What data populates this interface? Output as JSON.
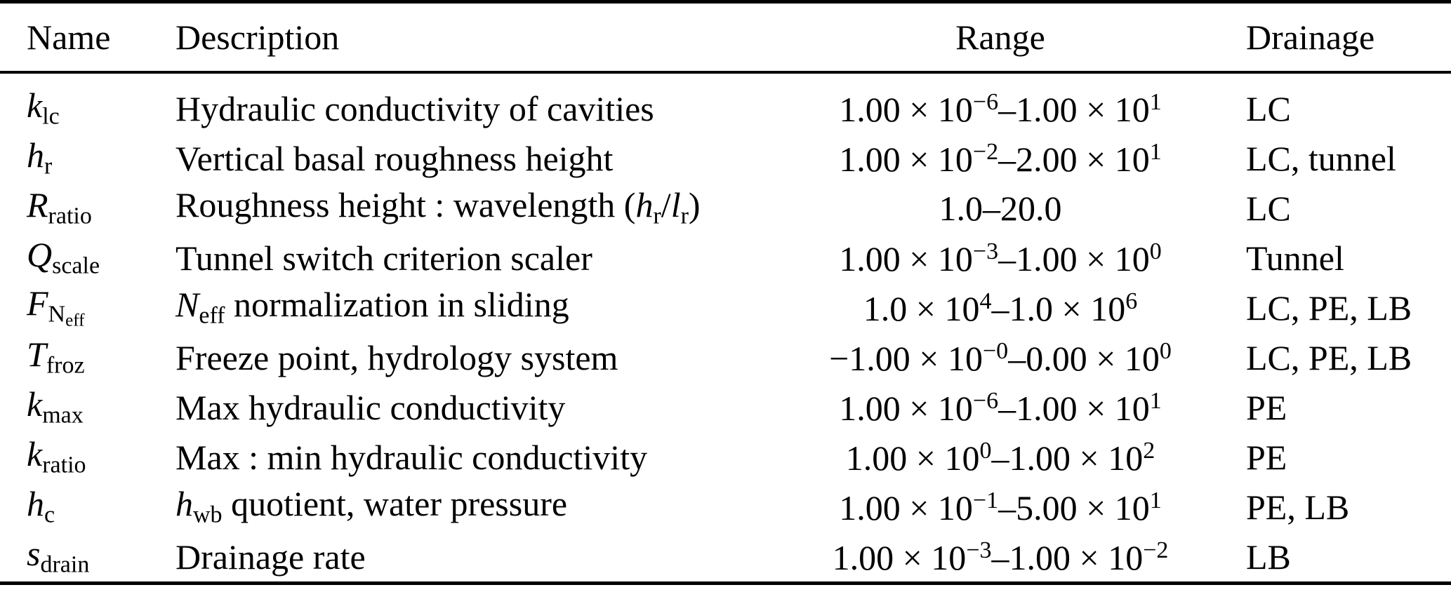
{
  "table": {
    "headers": [
      {
        "label": "Name"
      },
      {
        "label": "Description"
      },
      {
        "label": "Range"
      },
      {
        "label": "Drainage"
      }
    ],
    "rows": [
      {
        "name": [
          {
            "t": "k",
            "i": true
          },
          {
            "t": "lc",
            "v": "sub"
          }
        ],
        "description": [
          {
            "t": "Hydraulic conductivity of cavities"
          }
        ],
        "range": [
          {
            "t": "1.00 × 10"
          },
          {
            "t": "−6",
            "v": "sup"
          },
          {
            "t": "–1.00 × 10"
          },
          {
            "t": "1",
            "v": "sup"
          }
        ],
        "drainage": "LC"
      },
      {
        "name": [
          {
            "t": "h",
            "i": true
          },
          {
            "t": "r",
            "v": "sub"
          }
        ],
        "description": [
          {
            "t": "Vertical basal roughness height"
          }
        ],
        "range": [
          {
            "t": "1.00 × 10"
          },
          {
            "t": "−2",
            "v": "sup"
          },
          {
            "t": "–2.00 × 10"
          },
          {
            "t": "1",
            "v": "sup"
          }
        ],
        "drainage": "LC, tunnel"
      },
      {
        "name": [
          {
            "t": "R",
            "i": true
          },
          {
            "t": "ratio",
            "v": "sub"
          }
        ],
        "description": [
          {
            "t": "Roughness height : wavelength ("
          },
          {
            "t": "h",
            "i": true
          },
          {
            "t": "r",
            "v": "sub"
          },
          {
            "t": "/"
          },
          {
            "t": "l",
            "i": true
          },
          {
            "t": "r",
            "v": "sub"
          },
          {
            "t": ")"
          }
        ],
        "range": [
          {
            "t": "1.0–20.0"
          }
        ],
        "drainage": "LC"
      },
      {
        "name": [
          {
            "t": "Q",
            "i": true
          },
          {
            "t": "scale",
            "v": "sub"
          }
        ],
        "description": [
          {
            "t": "Tunnel switch criterion scaler"
          }
        ],
        "range": [
          {
            "t": "1.00 × 10"
          },
          {
            "t": "−3",
            "v": "sup"
          },
          {
            "t": "–1.00 × 10"
          },
          {
            "t": "0",
            "v": "sup"
          }
        ],
        "drainage": "Tunnel"
      },
      {
        "name": [
          {
            "t": "F",
            "i": true
          },
          {
            "t": "N",
            "i": true,
            "v": "sub"
          },
          {
            "t": "eff",
            "v": "subsub"
          }
        ],
        "description": [
          {
            "t": "N",
            "i": true
          },
          {
            "t": "eff",
            "v": "sub"
          },
          {
            "t": " normalization in sliding"
          }
        ],
        "range": [
          {
            "t": "1.0 × 10"
          },
          {
            "t": "4",
            "v": "sup"
          },
          {
            "t": "–1.0 × 10"
          },
          {
            "t": "6",
            "v": "sup"
          }
        ],
        "drainage": "LC, PE, LB"
      },
      {
        "name": [
          {
            "t": "T",
            "i": true
          },
          {
            "t": "froz",
            "v": "sub"
          }
        ],
        "description": [
          {
            "t": "Freeze point, hydrology system"
          }
        ],
        "range": [
          {
            "t": "−1.00 × 10"
          },
          {
            "t": "−0",
            "v": "sup"
          },
          {
            "t": "–0.00 × 10"
          },
          {
            "t": "0",
            "v": "sup"
          }
        ],
        "drainage": "LC, PE, LB"
      },
      {
        "name": [
          {
            "t": "k",
            "i": true
          },
          {
            "t": "max",
            "v": "sub"
          }
        ],
        "description": [
          {
            "t": "Max hydraulic conductivity"
          }
        ],
        "range": [
          {
            "t": "1.00 × 10"
          },
          {
            "t": "−6",
            "v": "sup"
          },
          {
            "t": "–1.00 × 10"
          },
          {
            "t": "1",
            "v": "sup"
          }
        ],
        "drainage": "PE"
      },
      {
        "name": [
          {
            "t": "k",
            "i": true
          },
          {
            "t": "ratio",
            "v": "sub"
          }
        ],
        "description": [
          {
            "t": "Max : min hydraulic conductivity"
          }
        ],
        "range": [
          {
            "t": "1.00 × 10"
          },
          {
            "t": "0",
            "v": "sup"
          },
          {
            "t": "–1.00 × 10"
          },
          {
            "t": "2",
            "v": "sup"
          }
        ],
        "drainage": "PE"
      },
      {
        "name": [
          {
            "t": "h",
            "i": true
          },
          {
            "t": "c",
            "v": "sub"
          }
        ],
        "description": [
          {
            "t": "h",
            "i": true
          },
          {
            "t": "wb",
            "v": "sub"
          },
          {
            "t": " quotient, water pressure"
          }
        ],
        "range": [
          {
            "t": "1.00 × 10"
          },
          {
            "t": "−1",
            "v": "sup"
          },
          {
            "t": "–5.00 × 10"
          },
          {
            "t": "1",
            "v": "sup"
          }
        ],
        "drainage": "PE, LB"
      },
      {
        "name": [
          {
            "t": "s",
            "i": true
          },
          {
            "t": "drain",
            "v": "sub"
          }
        ],
        "description": [
          {
            "t": "Drainage rate"
          }
        ],
        "range": [
          {
            "t": "1.00 × 10"
          },
          {
            "t": "−3",
            "v": "sup"
          },
          {
            "t": "–1.00 × 10"
          },
          {
            "t": "−2",
            "v": "sup"
          }
        ],
        "drainage": "LB"
      }
    ]
  }
}
